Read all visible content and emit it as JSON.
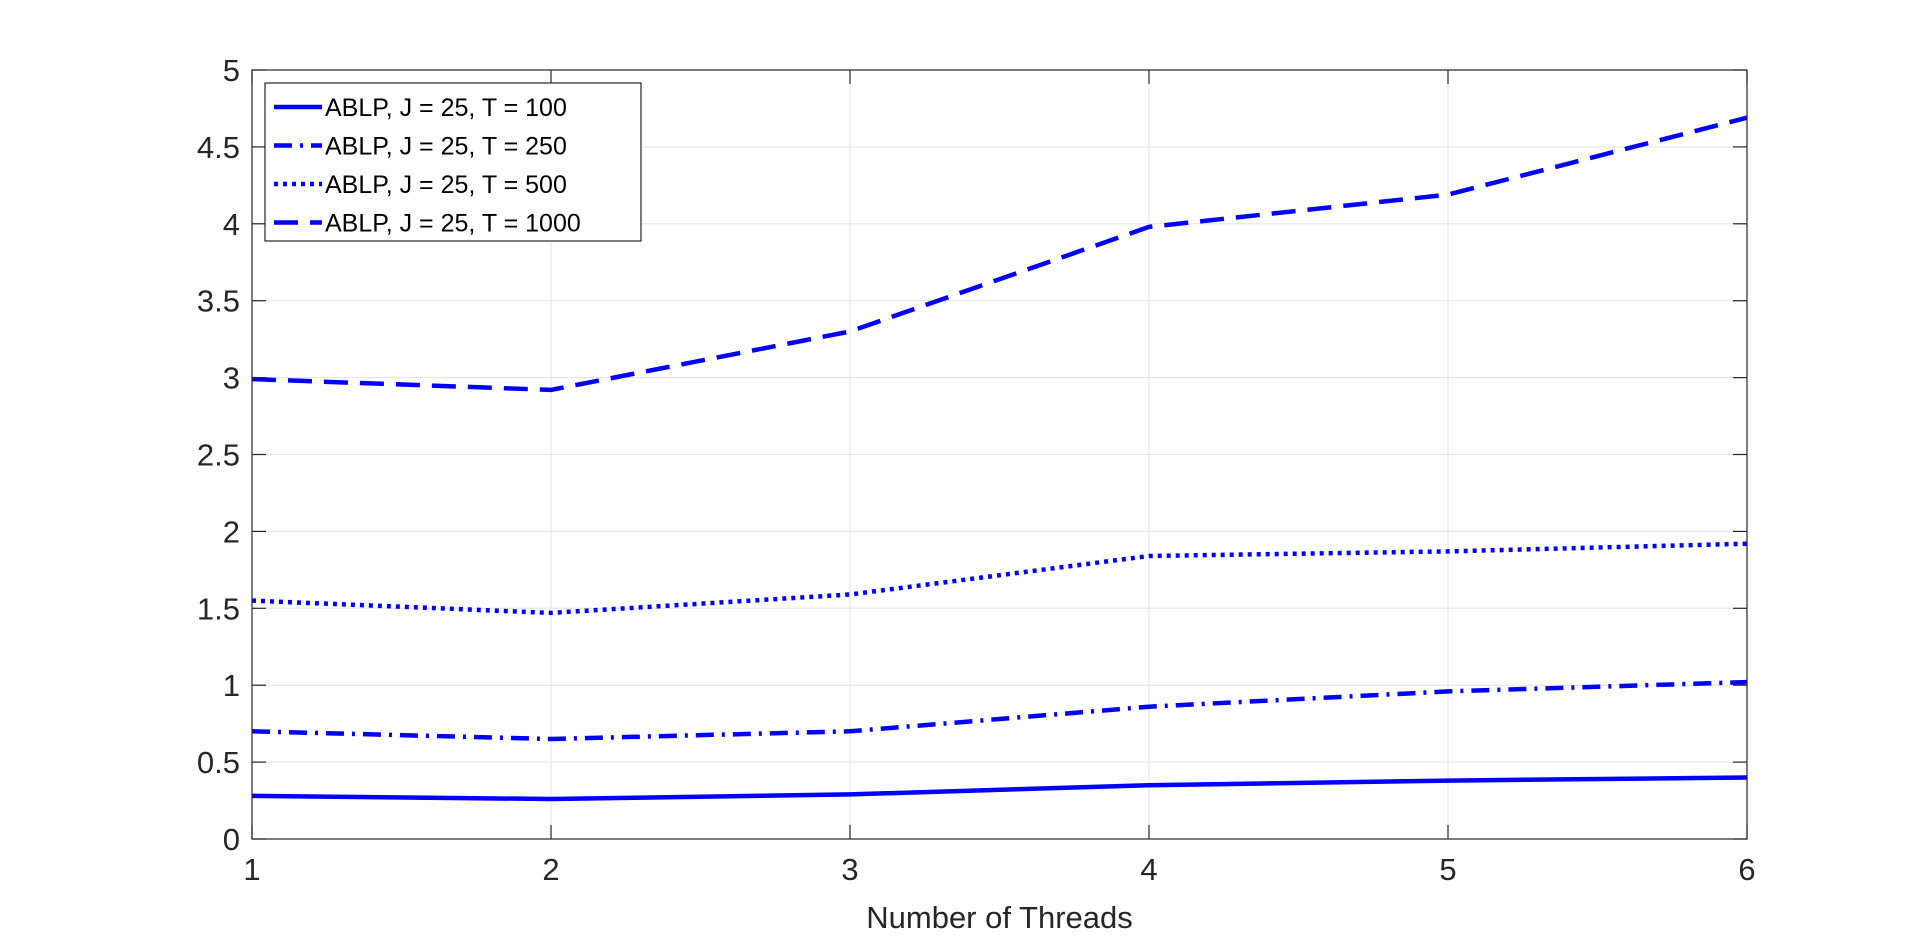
{
  "chart_data": {
    "type": "line",
    "title": "",
    "xlabel": "Number of Threads",
    "ylabel": "",
    "x": [
      1,
      2,
      3,
      4,
      5,
      6
    ],
    "xlim": [
      1,
      6
    ],
    "ylim": [
      0,
      5
    ],
    "xticks": [
      "1",
      "2",
      "3",
      "4",
      "5",
      "6"
    ],
    "yticks": [
      "0",
      "0.5",
      "1",
      "1.5",
      "2",
      "2.5",
      "3",
      "3.5",
      "4",
      "4.5",
      "5"
    ],
    "grid": true,
    "legend_position": "top-left",
    "color": "#0000ff",
    "series": [
      {
        "name": "ABLP, J = 25, T = 100",
        "style": "solid",
        "values": [
          0.28,
          0.26,
          0.29,
          0.35,
          0.38,
          0.4
        ]
      },
      {
        "name": "ABLP, J = 25, T = 250",
        "style": "dashdot",
        "values": [
          0.7,
          0.65,
          0.7,
          0.86,
          0.96,
          1.02
        ]
      },
      {
        "name": "ABLP, J = 25, T = 500",
        "style": "dotted",
        "values": [
          1.55,
          1.47,
          1.59,
          1.84,
          1.87,
          1.92
        ]
      },
      {
        "name": "ABLP, J = 25, T = 1000",
        "style": "dashed",
        "values": [
          2.99,
          2.92,
          3.3,
          3.98,
          4.19,
          4.69
        ]
      }
    ]
  }
}
